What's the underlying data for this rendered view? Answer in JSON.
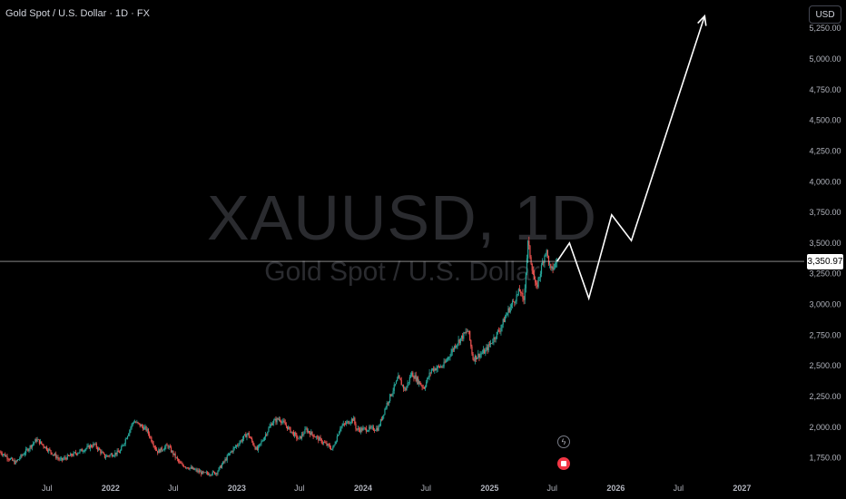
{
  "header": {
    "title": "Gold Spot / U.S. Dollar · 1D · FX",
    "currency": "USD"
  },
  "watermark": {
    "symbol": "XAUUSD, 1D",
    "description": "Gold Spot / U.S. Dollar"
  },
  "colors": {
    "background": "#000000",
    "up": "#26a69a",
    "down": "#ef5350",
    "projection": "#ffffff",
    "price_line": "#ffffff",
    "axis_text": "#b2b5be"
  },
  "events": [
    {
      "name": "flash-icon"
    },
    {
      "name": "earnings-icon"
    }
  ],
  "chart_data": {
    "type": "candlestick",
    "symbol": "XAUUSD",
    "interval": "1D",
    "last_price": 3350.97,
    "last_price_label": "3,350.97",
    "ylim": [
      1600,
      5480
    ],
    "x_range": [
      "2021-02-15",
      "2027-06-30"
    ],
    "y_ticks": [
      {
        "value": 1750,
        "label": "1,750.00"
      },
      {
        "value": 2000,
        "label": "2,000.00"
      },
      {
        "value": 2250,
        "label": "2,250.00"
      },
      {
        "value": 2500,
        "label": "2,500.00"
      },
      {
        "value": 2750,
        "label": "2,750.00"
      },
      {
        "value": 3000,
        "label": "3,000.00"
      },
      {
        "value": 3250,
        "label": "3,250.00"
      },
      {
        "value": 3500,
        "label": "3,500.00"
      },
      {
        "value": 3750,
        "label": "3,750.00"
      },
      {
        "value": 4000,
        "label": "4,000.00"
      },
      {
        "value": 4250,
        "label": "4,250.00"
      },
      {
        "value": 4500,
        "label": "4,500.00"
      },
      {
        "value": 4750,
        "label": "4,750.00"
      },
      {
        "value": 5000,
        "label": "5,000.00"
      },
      {
        "value": 5250,
        "label": "5,250.00"
      }
    ],
    "x_ticks": [
      {
        "date": "2021-07-01",
        "label": "Jul",
        "bold": false
      },
      {
        "date": "2022-01-01",
        "label": "2022",
        "bold": true
      },
      {
        "date": "2022-07-01",
        "label": "Jul",
        "bold": false
      },
      {
        "date": "2023-01-01",
        "label": "2023",
        "bold": true
      },
      {
        "date": "2023-07-01",
        "label": "Jul",
        "bold": false
      },
      {
        "date": "2024-01-01",
        "label": "2024",
        "bold": true
      },
      {
        "date": "2024-07-01",
        "label": "Jul",
        "bold": false
      },
      {
        "date": "2025-01-01",
        "label": "2025",
        "bold": true
      },
      {
        "date": "2025-07-01",
        "label": "Jul",
        "bold": false
      },
      {
        "date": "2026-01-01",
        "label": "2026",
        "bold": true
      },
      {
        "date": "2026-07-01",
        "label": "Jul",
        "bold": false
      },
      {
        "date": "2027-01-01",
        "label": "2027",
        "bold": true
      }
    ],
    "price_path": [
      [
        "2021-02-15",
        1800
      ],
      [
        "2021-03-31",
        1710
      ],
      [
        "2021-06-01",
        1900
      ],
      [
        "2021-08-09",
        1730
      ],
      [
        "2021-11-15",
        1860
      ],
      [
        "2021-12-15",
        1760
      ],
      [
        "2022-01-28",
        1800
      ],
      [
        "2022-03-08",
        2050
      ],
      [
        "2022-04-15",
        1980
      ],
      [
        "2022-05-16",
        1800
      ],
      [
        "2022-06-15",
        1850
      ],
      [
        "2022-07-21",
        1700
      ],
      [
        "2022-09-28",
        1620
      ],
      [
        "2022-11-03",
        1630
      ],
      [
        "2022-12-15",
        1800
      ],
      [
        "2023-02-01",
        1950
      ],
      [
        "2023-02-28",
        1810
      ],
      [
        "2023-04-13",
        2040
      ],
      [
        "2023-05-04",
        2070
      ],
      [
        "2023-06-29",
        1900
      ],
      [
        "2023-07-20",
        1980
      ],
      [
        "2023-10-05",
        1820
      ],
      [
        "2023-10-27",
        2000
      ],
      [
        "2023-12-04",
        2070
      ],
      [
        "2023-12-13",
        1980
      ],
      [
        "2024-02-14",
        1990
      ],
      [
        "2024-03-08",
        2180
      ],
      [
        "2024-04-12",
        2400
      ],
      [
        "2024-05-02",
        2300
      ],
      [
        "2024-05-20",
        2440
      ],
      [
        "2024-06-25",
        2320
      ],
      [
        "2024-07-17",
        2470
      ],
      [
        "2024-08-20",
        2500
      ],
      [
        "2024-09-26",
        2680
      ],
      [
        "2024-10-31",
        2790
      ],
      [
        "2024-11-14",
        2560
      ],
      [
        "2024-12-20",
        2620
      ],
      [
        "2025-01-31",
        2800
      ],
      [
        "2025-02-24",
        2950
      ],
      [
        "2025-03-31",
        3120
      ],
      [
        "2025-04-09",
        3000
      ],
      [
        "2025-04-22",
        3500
      ],
      [
        "2025-05-15",
        3120
      ],
      [
        "2025-06-13",
        3450
      ],
      [
        "2025-06-27",
        3270
      ],
      [
        "2025-07-15",
        3350.97
      ]
    ],
    "projection": [
      [
        "2025-07-15",
        3350
      ],
      [
        "2025-08-20",
        3500
      ],
      [
        "2025-10-15",
        3050
      ],
      [
        "2025-12-20",
        3730
      ],
      [
        "2026-02-15",
        3520
      ],
      [
        "2026-09-15",
        5350
      ]
    ]
  }
}
